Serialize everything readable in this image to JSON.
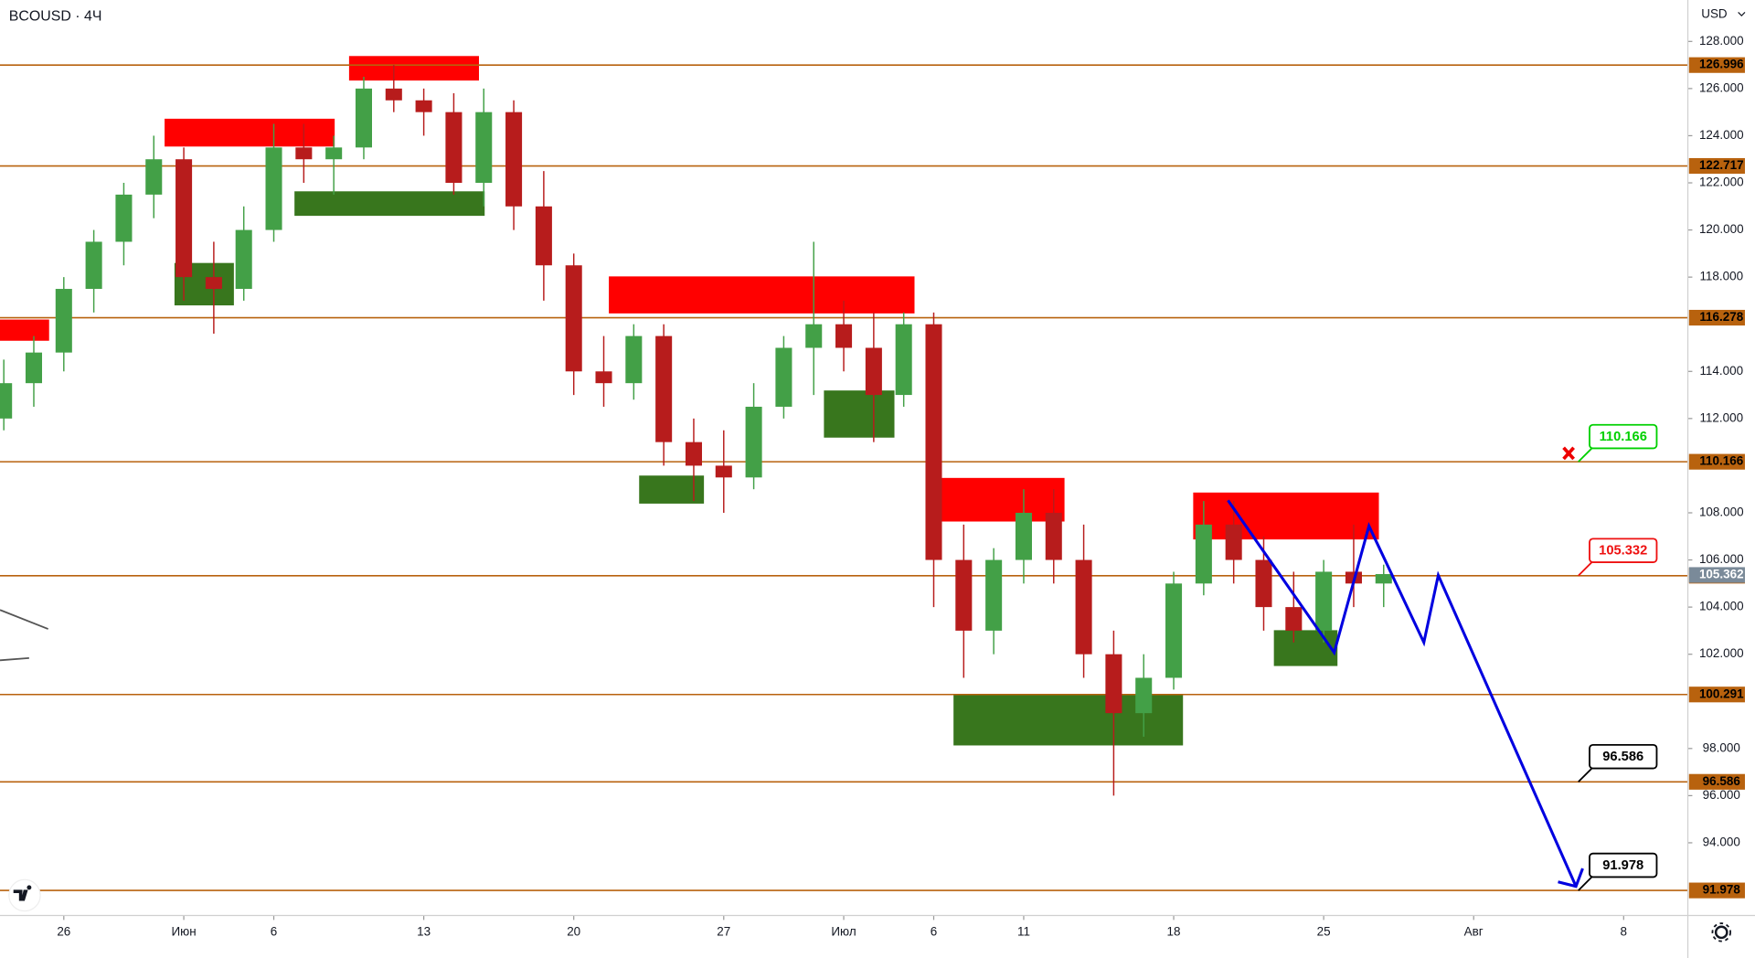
{
  "chart_data": {
    "type": "candlestick",
    "title": "BCOUSD · 4Ч",
    "currency": "USD",
    "xlim": [
      -2.127,
      54.14
    ],
    "ylim": [
      90.916,
      129.757
    ],
    "xticks": [
      {
        "value": 0,
        "label": "26"
      },
      {
        "value": 4,
        "label": "Июн"
      },
      {
        "value": 7,
        "label": "6"
      },
      {
        "value": 12,
        "label": "13"
      },
      {
        "value": 17,
        "label": "20"
      },
      {
        "value": 22,
        "label": "27"
      },
      {
        "value": 26,
        "label": "Июл"
      },
      {
        "value": 29,
        "label": "6"
      },
      {
        "value": 32,
        "label": "11"
      },
      {
        "value": 37,
        "label": "18"
      },
      {
        "value": 42,
        "label": "25"
      },
      {
        "value": 47,
        "label": "Авг"
      },
      {
        "value": 52,
        "label": "8"
      }
    ],
    "yticks": [
      {
        "value": 94,
        "label": "94.000"
      },
      {
        "value": 96,
        "label": "96.000"
      },
      {
        "value": 98,
        "label": "98.000"
      },
      {
        "value": 102,
        "label": "102.000"
      },
      {
        "value": 104,
        "label": "104.000"
      },
      {
        "value": 106,
        "label": "106.000"
      },
      {
        "value": 108,
        "label": "108.000"
      },
      {
        "value": 112,
        "label": "112.000"
      },
      {
        "value": 114,
        "label": "114.000"
      },
      {
        "value": 118,
        "label": "118.000"
      },
      {
        "value": 120,
        "label": "120.000"
      },
      {
        "value": 122,
        "label": "122.000"
      },
      {
        "value": 124,
        "label": "124.000"
      },
      {
        "value": 126,
        "label": "126.000"
      },
      {
        "value": 128,
        "label": "128.000"
      }
    ],
    "up_color": "#43a047",
    "down_color": "#b71c1c",
    "x": [
      -2,
      -1,
      0,
      1,
      2,
      3,
      4,
      5,
      6,
      7,
      8,
      9,
      10,
      11,
      12,
      13,
      14,
      15,
      16,
      17,
      18,
      19,
      20,
      21,
      22,
      23,
      24,
      25,
      26,
      27,
      28,
      29,
      30,
      31,
      32,
      33,
      34,
      35,
      36,
      37,
      38,
      39,
      40,
      41,
      42,
      43,
      44
    ],
    "open": [
      112,
      113.5,
      114.8,
      117.5,
      119.5,
      121.5,
      123,
      118,
      117.5,
      120,
      123.5,
      123,
      123.5,
      126,
      125.5,
      125,
      122,
      125,
      121,
      118.5,
      114,
      113.5,
      115.5,
      111,
      110,
      109.5,
      112.5,
      115,
      116,
      115,
      113,
      116,
      106,
      103,
      106,
      108,
      106,
      102,
      99.5,
      101,
      105,
      107.5,
      106,
      104,
      103,
      105.5,
      105
    ],
    "high": [
      114.5,
      115.5,
      118,
      120,
      122,
      124,
      123.5,
      119.5,
      121,
      124.5,
      124.5,
      124,
      126.5,
      127,
      126,
      125.8,
      126,
      125.5,
      122.5,
      119,
      115.5,
      116,
      116,
      112,
      111.5,
      113.5,
      115.5,
      119.5,
      117,
      116.5,
      116.5,
      116.5,
      107.5,
      106.5,
      109,
      109,
      107.5,
      103,
      102,
      105.5,
      108.5,
      108.5,
      107,
      105.5,
      106,
      107.5,
      105.8
    ],
    "low": [
      111.5,
      112.5,
      114,
      116.5,
      118.5,
      120.5,
      117,
      115.6,
      117,
      119.5,
      122,
      121.5,
      123,
      125,
      124,
      121.5,
      121,
      120,
      117,
      113,
      112.5,
      112.8,
      110,
      108.5,
      108,
      109,
      112,
      113,
      114,
      111,
      112.5,
      104,
      101,
      102,
      105,
      105,
      101,
      96,
      98.5,
      100.5,
      104.5,
      105,
      103,
      102.5,
      102.5,
      104,
      104
    ],
    "close": [
      113.5,
      114.8,
      117.5,
      119.5,
      121.5,
      123,
      118,
      117.5,
      120,
      123.5,
      123,
      123.5,
      126,
      125.5,
      125,
      122,
      125,
      121,
      118.5,
      114,
      113.5,
      115.5,
      111,
      110,
      109.5,
      112.5,
      115,
      116,
      115,
      113,
      116,
      106,
      103,
      106,
      108,
      106,
      102,
      99.5,
      101,
      105,
      107.5,
      106,
      104,
      103,
      105.5,
      105,
      105.4
    ],
    "level_color": "#b8620e",
    "levels": [
      126.996,
      122.717,
      116.278,
      110.166,
      105.332,
      100.291,
      96.586,
      91.978
    ],
    "last_price": 105.362,
    "zones": [
      {
        "color": "#ff0000",
        "x": [
          -2.13,
          -0.49
        ],
        "y": [
          115.3,
          116.2
        ]
      },
      {
        "color": "#ff0000",
        "x": [
          3.36,
          9.03
        ],
        "y": [
          123.54,
          124.72
        ]
      },
      {
        "color": "#ff0000",
        "x": [
          9.51,
          13.84
        ],
        "y": [
          126.34,
          127.38
        ]
      },
      {
        "color": "#ff0000",
        "x": [
          18.17,
          28.36
        ],
        "y": [
          116.46,
          118.03
        ]
      },
      {
        "color": "#ff0000",
        "x": [
          28.99,
          33.36
        ],
        "y": [
          107.63,
          109.48
        ]
      },
      {
        "color": "#ff0000",
        "x": [
          37.65,
          43.84
        ],
        "y": [
          106.87,
          108.86
        ]
      },
      {
        "color": "#38761d",
        "x": [
          3.69,
          5.67
        ],
        "y": [
          116.8,
          118.6
        ]
      },
      {
        "color": "#38761d",
        "x": [
          7.69,
          14.03
        ],
        "y": [
          120.6,
          121.64
        ]
      },
      {
        "color": "#38761d",
        "x": [
          19.18,
          21.34
        ],
        "y": [
          108.39,
          109.58
        ]
      },
      {
        "color": "#38761d",
        "x": [
          25.34,
          27.69
        ],
        "y": [
          111.19,
          113.19
        ]
      },
      {
        "color": "#38761d",
        "x": [
          29.66,
          37.31
        ],
        "y": [
          98.13,
          100.32
        ]
      },
      {
        "color": "#38761d",
        "x": [
          40.34,
          42.46
        ],
        "y": [
          101.5,
          103.02
        ]
      }
    ],
    "projection": {
      "color": "#0000e0",
      "x": [
        38.81,
        42.35,
        43.51,
        45.34,
        45.82,
        50.41
      ],
      "y": [
        108.53,
        102.07,
        107.44,
        102.5,
        105.35,
        92.15
      ]
    },
    "callouts": [
      {
        "value": 110.166,
        "x": 50.49,
        "color": "#00d000"
      },
      {
        "value": 105.332,
        "x": 50.49,
        "color": "#ee1111"
      },
      {
        "value": 96.586,
        "x": 50.49,
        "color": "#000000"
      },
      {
        "value": 91.978,
        "x": 50.49,
        "color": "#000000"
      }
    ]
  }
}
